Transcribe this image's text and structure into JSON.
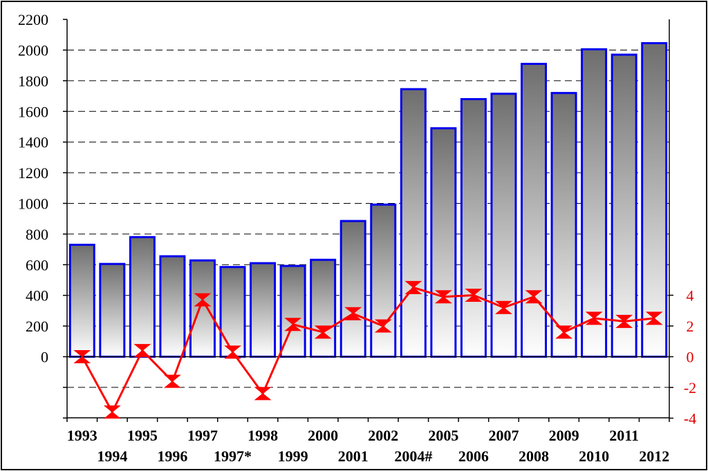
{
  "chart_data": {
    "type": "bar",
    "categories": [
      "1993",
      "1994",
      "1995",
      "1996",
      "1997",
      "1997*",
      "1998",
      "1999",
      "2000",
      "2001",
      "2002",
      "2004#",
      "2005",
      "2006",
      "2007",
      "2008",
      "2009",
      "2010",
      "2011",
      "2012"
    ],
    "series": [
      {
        "type": "bar",
        "axis": "left",
        "values": [
          730,
          605,
          780,
          655,
          628,
          585,
          610,
          592,
          632,
          885,
          992,
          1745,
          1490,
          1680,
          1715,
          1910,
          1720,
          2005,
          1970,
          2045
        ]
      },
      {
        "type": "line",
        "axis": "right",
        "values": [
          0.0,
          -3.6,
          0.4,
          -1.6,
          3.7,
          0.3,
          -2.4,
          2.1,
          1.6,
          2.8,
          2.0,
          4.5,
          3.9,
          4.0,
          3.2,
          3.9,
          1.6,
          2.5,
          2.3,
          2.5
        ]
      }
    ],
    "yleft": {
      "ticks": [
        "2200",
        "2000",
        "1800",
        "1600",
        "1400",
        "1200",
        "1000",
        "800",
        "600",
        "400",
        "200",
        "0"
      ],
      "ylim": [
        -400,
        2200
      ]
    },
    "yright": {
      "ticks": [
        "4",
        "2",
        "0",
        "-2",
        "-4"
      ],
      "ylim": [
        -4,
        4
      ]
    },
    "grid": "dashed horizontal",
    "colors": {
      "bar_border": "#0000ee",
      "bar_top": "#6e6e6e",
      "bar_bottom": "#ffffff",
      "line": "#ff0000",
      "right_axis_text": "#e00000"
    },
    "title": "",
    "xlabel": "",
    "ylabel": ""
  }
}
